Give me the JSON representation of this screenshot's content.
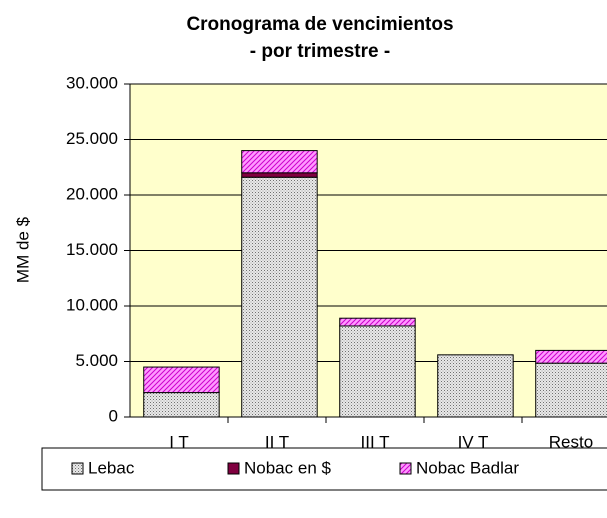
{
  "chart_data": {
    "type": "stacked_bar",
    "title": "Cronograma de vencimientos",
    "subtitle": "- por trimestre -",
    "y_label": "MM de $",
    "categories": [
      "I T",
      "II T",
      "III T",
      "IV T",
      "Resto"
    ],
    "series": [
      {
        "name": "Lebac",
        "color": "#c0c0c0",
        "values": [
          2200,
          21600,
          8200,
          5600,
          4850
        ]
      },
      {
        "name": "Nobac en $",
        "color": "#800040",
        "values": [
          0,
          400,
          0,
          0,
          0
        ]
      },
      {
        "name": "Nobac Badlar",
        "color": "#ff80ff",
        "values": [
          2300,
          2000,
          700,
          0,
          1150
        ]
      }
    ],
    "ylim": [
      0,
      30000
    ],
    "yticks": [
      0,
      {
        "value": 5000,
        "label": "5.000"
      },
      {
        "value": 10000,
        "label": "10.000"
      },
      {
        "value": 15000,
        "label": "15.000"
      },
      {
        "value": 20000,
        "label": "20.000"
      },
      {
        "value": 25000,
        "label": "25.000"
      },
      {
        "value": 30000,
        "label": "30.000"
      }
    ],
    "grid": true,
    "legend": "bottom"
  }
}
